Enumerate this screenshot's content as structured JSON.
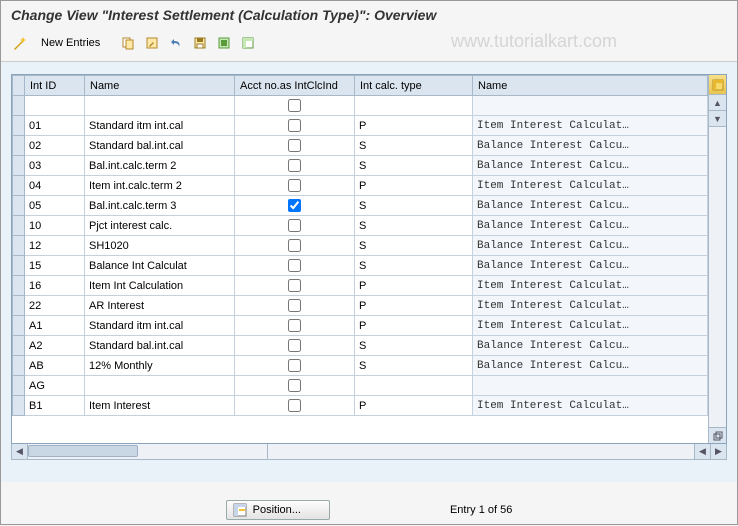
{
  "title": "Change View \"Interest Settlement (Calculation Type)\": Overview",
  "toolbar": {
    "new_entries_label": "New Entries",
    "icons": {
      "wand": "wand",
      "copy": "copy",
      "undo": "undo",
      "home": "home",
      "save": "save",
      "select_all": "select-all",
      "deselect_all": "deselect-all"
    }
  },
  "watermark": "www.tutorialkart.com",
  "columns": {
    "int_id": "Int ID",
    "name": "Name",
    "acct": "Acct no.as IntClcInd",
    "calc_type": "Int calc. type",
    "name2": "Name"
  },
  "rows": [
    {
      "id": "",
      "name": "",
      "acct": false,
      "calc": "",
      "name2": ""
    },
    {
      "id": "01",
      "name": "Standard itm int.cal",
      "acct": false,
      "calc": "P",
      "name2": "Item Interest Calculat…"
    },
    {
      "id": "02",
      "name": "Standard bal.int.cal",
      "acct": false,
      "calc": "S",
      "name2": "Balance Interest Calcu…"
    },
    {
      "id": "03",
      "name": "Bal.int.calc.term 2",
      "acct": false,
      "calc": "S",
      "name2": "Balance Interest Calcu…"
    },
    {
      "id": "04",
      "name": "Item int.calc.term 2",
      "acct": false,
      "calc": "P",
      "name2": "Item Interest Calculat…"
    },
    {
      "id": "05",
      "name": "Bal.int.calc.term 3",
      "acct": true,
      "calc": "S",
      "name2": "Balance Interest Calcu…"
    },
    {
      "id": "10",
      "name": "Pjct interest calc.",
      "acct": false,
      "calc": "S",
      "name2": "Balance Interest Calcu…"
    },
    {
      "id": "12",
      "name": "SH1020",
      "acct": false,
      "calc": "S",
      "name2": "Balance Interest Calcu…"
    },
    {
      "id": "15",
      "name": "Balance Int Calculat",
      "acct": false,
      "calc": "S",
      "name2": "Balance Interest Calcu…"
    },
    {
      "id": "16",
      "name": "Item Int Calculation",
      "acct": false,
      "calc": "P",
      "name2": "Item Interest Calculat…"
    },
    {
      "id": "22",
      "name": "AR Interest",
      "acct": false,
      "calc": "P",
      "name2": "Item Interest Calculat…"
    },
    {
      "id": "A1",
      "name": "Standard itm int.cal",
      "acct": false,
      "calc": "P",
      "name2": "Item Interest Calculat…"
    },
    {
      "id": "A2",
      "name": "Standard bal.int.cal",
      "acct": false,
      "calc": "S",
      "name2": "Balance Interest Calcu…"
    },
    {
      "id": "AB",
      "name": "12% Monthly",
      "acct": false,
      "calc": "S",
      "name2": "Balance Interest Calcu…"
    },
    {
      "id": "AG",
      "name": "",
      "acct": false,
      "calc": "",
      "name2": ""
    },
    {
      "id": "B1",
      "name": "Item Interest",
      "acct": false,
      "calc": "P",
      "name2": "Item Interest Calculat…"
    }
  ],
  "footer": {
    "position_label": "Position...",
    "entry_text": "Entry 1 of 56"
  },
  "colors": {
    "header_bg": "#dbe5ef",
    "content_bg": "#eaf2f9",
    "border": "#a7b8c9"
  }
}
